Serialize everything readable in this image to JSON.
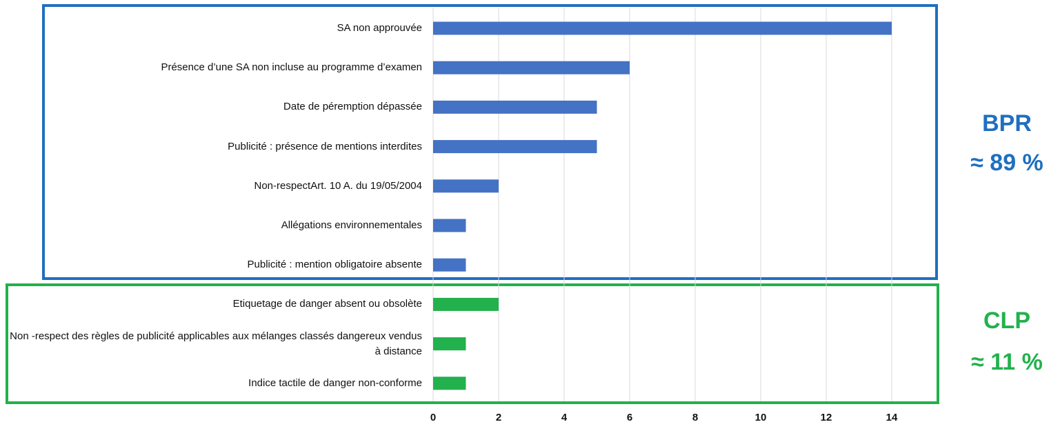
{
  "chart_data": {
    "type": "bar",
    "orientation": "horizontal",
    "categories": [
      "SA non approuvée",
      "Présence d’une SA non incluse au programme d’examen",
      "Date de péremption dépassée",
      "Publicité : présence de mentions interdites",
      "Non-respectArt. 10 A. du 19/05/2004",
      "Allégations environnementales",
      "Publicité : mention obligatoire absente",
      "Etiquetage de danger absent ou obsolète",
      "Non -respect des règles de publicité applicables aux mélanges classés dangereux vendus à distance",
      "Indice tactile de danger non-conforme"
    ],
    "values": [
      14,
      6,
      5,
      5,
      2,
      1,
      1,
      2,
      1,
      1
    ],
    "colors": [
      "#4472c4",
      "#4472c4",
      "#4472c4",
      "#4472c4",
      "#4472c4",
      "#4472c4",
      "#4472c4",
      "#22b14c",
      "#22b14c",
      "#22b14c"
    ],
    "xlim": [
      0,
      15
    ],
    "xticks": [
      0,
      2,
      4,
      6,
      8,
      10,
      12,
      14
    ],
    "grid": true,
    "annotations": [
      {
        "text": "BPR",
        "color": "#1f6fbf"
      },
      {
        "text": "≈ 89 %",
        "color": "#1f6fbf"
      },
      {
        "text": "CLP",
        "color": "#22b14c"
      },
      {
        "text": "≈ 11 %",
        "color": "#22b14c"
      }
    ]
  }
}
